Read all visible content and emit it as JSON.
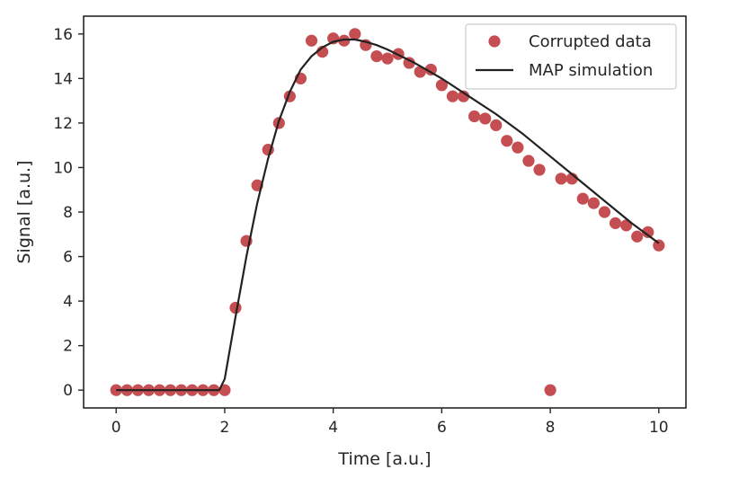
{
  "chart_data": {
    "type": "scatter",
    "title": "",
    "xlabel": "Time [a.u.]",
    "ylabel": "Signal [a.u.]",
    "xlim": [
      -0.6,
      10.5
    ],
    "ylim": [
      -0.8,
      16.8
    ],
    "xticks": [
      0,
      2,
      4,
      6,
      8,
      10
    ],
    "yticks": [
      0,
      2,
      4,
      6,
      8,
      10,
      12,
      14,
      16
    ],
    "grid": false,
    "legend": "top-right",
    "series": [
      {
        "name": "Corrupted data",
        "kind": "scatter",
        "color": "#c44e52",
        "x": [
          0,
          0.2,
          0.4,
          0.6,
          0.8,
          1.0,
          1.2,
          1.4,
          1.6,
          1.8,
          2.0,
          2.2,
          2.4,
          2.6,
          2.8,
          3.0,
          3.2,
          3.4,
          3.6,
          3.8,
          4.0,
          4.2,
          4.4,
          4.6,
          4.8,
          5.0,
          5.2,
          5.4,
          5.6,
          5.8,
          6.0,
          6.2,
          6.4,
          6.6,
          6.8,
          7.0,
          7.2,
          7.4,
          7.6,
          7.8,
          8.0,
          8.2,
          8.4,
          8.6,
          8.8,
          9.0,
          9.2,
          9.4,
          9.6,
          9.8,
          10.0
        ],
        "y": [
          0,
          0,
          0,
          0,
          0,
          0,
          0,
          0,
          0,
          0,
          0,
          3.7,
          6.7,
          9.2,
          10.8,
          12.0,
          13.2,
          14.0,
          15.7,
          15.2,
          15.8,
          15.7,
          16.0,
          15.5,
          15.0,
          14.9,
          15.1,
          14.7,
          14.3,
          14.4,
          13.7,
          13.2,
          13.2,
          12.3,
          12.2,
          11.9,
          11.2,
          10.9,
          10.3,
          9.9,
          0,
          9.5,
          9.5,
          8.6,
          8.4,
          8.0,
          7.5,
          7.4,
          6.9,
          7.1,
          6.5
        ]
      },
      {
        "name": "MAP simulation",
        "kind": "line",
        "color": "#222222",
        "x": [
          0,
          1.9,
          2.0,
          2.1,
          2.2,
          2.4,
          2.6,
          2.8,
          3.0,
          3.2,
          3.4,
          3.6,
          3.8,
          4.0,
          4.2,
          4.4,
          4.6,
          4.8,
          5.0,
          5.5,
          6.0,
          6.5,
          7.0,
          7.5,
          8.0,
          8.5,
          9.0,
          9.5,
          10.0
        ],
        "y": [
          0,
          0,
          0.5,
          1.9,
          3.3,
          6.0,
          8.4,
          10.4,
          12.1,
          13.4,
          14.4,
          15.0,
          15.4,
          15.65,
          15.75,
          15.75,
          15.65,
          15.5,
          15.3,
          14.7,
          14.0,
          13.2,
          12.4,
          11.5,
          10.5,
          9.5,
          8.5,
          7.5,
          6.6
        ]
      }
    ]
  }
}
